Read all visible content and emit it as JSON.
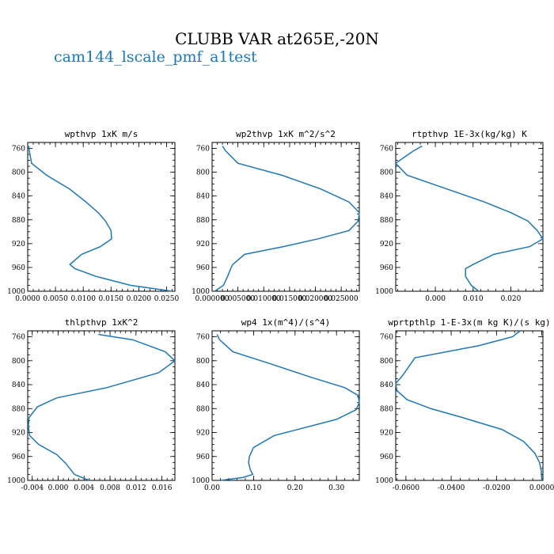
{
  "title": "CLUBB VAR at265E,-20N",
  "legend": {
    "label": "cam144_lscale_pmf_a1test",
    "color": "#1f77b4"
  },
  "chart_data": [
    {
      "type": "line",
      "title": "wpthvp  1xK m/s",
      "xlim": [
        0,
        0.0265
      ],
      "ylim": [
        1000,
        750
      ],
      "xticks": [
        0,
        0.005,
        0.01,
        0.015,
        0.02,
        0.025
      ],
      "xtick_labels": [
        "0.0000",
        "0.0050",
        "0.0100",
        "0.0150",
        "0.0200",
        "0.0250"
      ],
      "yticks": [
        760,
        800,
        840,
        880,
        920,
        960,
        1000
      ],
      "yticks_labels": [
        "760",
        "800",
        "840",
        "880",
        "920",
        "960",
        "1000"
      ],
      "series": [
        {
          "x": [
            0.0002,
            0.0003,
            0.0007,
            0.0034,
            0.0075,
            0.0105,
            0.0127,
            0.014,
            0.015,
            0.0151,
            0.0131,
            0.0097,
            0.0076,
            0.0085,
            0.0123,
            0.0185,
            0.026
          ],
          "y": [
            756,
            765,
            785,
            805,
            828,
            850,
            868,
            882,
            898,
            912,
            925,
            938,
            955,
            962,
            975,
            990,
            1000
          ]
        }
      ]
    },
    {
      "type": "line",
      "title": "wp2thvp  1xK m^2/s^2",
      "xlim": [
        0,
        0.0285
      ],
      "ylim": [
        1000,
        750
      ],
      "xticks": [
        0,
        0.005,
        0.01,
        0.015,
        0.02,
        0.025
      ],
      "xtick_labels": [
        "0.000000",
        "0.005000",
        "0.010000",
        "0.015000",
        "0.020000",
        "0.025000"
      ],
      "yticks": [
        760,
        800,
        840,
        880,
        920,
        960,
        1000
      ],
      "yticks_labels": [
        "760",
        "800",
        "840",
        "880",
        "920",
        "960",
        "1000"
      ],
      "series": [
        {
          "x": [
            0.002,
            0.0026,
            0.005,
            0.0135,
            0.021,
            0.0265,
            0.0285,
            0.0283,
            0.0265,
            0.0205,
            0.0138,
            0.0063,
            0.004,
            0.0036,
            0.003,
            0.0022,
            0.0005
          ],
          "y": [
            756,
            764,
            785,
            805,
            828,
            850,
            868,
            882,
            898,
            912,
            925,
            938,
            955,
            962,
            975,
            990,
            1000
          ]
        }
      ]
    },
    {
      "type": "line",
      "title": "rtpthvp  1E-3x(kg/kg) K",
      "xlim": [
        -0.0105,
        0.0285
      ],
      "ylim": [
        1000,
        750
      ],
      "xticks": [
        0,
        0.01,
        0.02
      ],
      "xtick_labels": [
        "0.000",
        "0.010",
        "0.020"
      ],
      "yticks": [
        760,
        800,
        840,
        880,
        920,
        960,
        1000
      ],
      "yticks_labels": [
        "760",
        "800",
        "840",
        "880",
        "920",
        "960",
        "1000"
      ],
      "series": [
        {
          "x": [
            -0.0035,
            -0.006,
            -0.0105,
            -0.0075,
            0.003,
            0.013,
            0.02,
            0.0245,
            0.027,
            0.0285,
            0.025,
            0.0155,
            0.01,
            0.008,
            0.008,
            0.0095,
            0.0115
          ],
          "y": [
            756,
            765,
            785,
            805,
            828,
            850,
            868,
            882,
            898,
            912,
            925,
            938,
            955,
            962,
            975,
            990,
            1000
          ]
        }
      ]
    },
    {
      "type": "line",
      "title": "thlpthvp  1xK^2",
      "xlim": [
        -0.0047,
        0.018
      ],
      "ylim": [
        1000,
        750
      ],
      "xticks": [
        -0.004,
        0,
        0.004,
        0.008,
        0.012,
        0.016
      ],
      "xtick_labels": [
        "-0.004",
        "0.000",
        "0.004",
        "0.008",
        "0.012",
        "0.016"
      ],
      "yticks": [
        760,
        800,
        840,
        880,
        920,
        960,
        1000
      ],
      "yticks_labels": [
        "760",
        "800",
        "840",
        "880",
        "920",
        "960",
        "1000"
      ],
      "series": [
        {
          "x": [
            0.0062,
            0.0115,
            0.0165,
            0.018,
            0.0155,
            0.0075,
            -0.0002,
            -0.0032,
            -0.0045,
            -0.0046,
            -0.0044,
            -0.003,
            -0.0002,
            0.0012,
            0.0025,
            0.0048
          ],
          "y": [
            756,
            765,
            785,
            800,
            820,
            845,
            862,
            877,
            895,
            910,
            925,
            940,
            957,
            972,
            990,
            1000
          ]
        }
      ]
    },
    {
      "type": "line",
      "title": "wp4  1x(m^4)/(s^4)",
      "xlim": [
        0,
        0.355
      ],
      "ylim": [
        1000,
        750
      ],
      "xticks": [
        0,
        0.1,
        0.2,
        0.3
      ],
      "xtick_labels": [
        "0.00",
        "0.10",
        "0.20",
        "0.30"
      ],
      "yticks": [
        760,
        800,
        840,
        880,
        920,
        960,
        1000
      ],
      "yticks_labels": [
        "760",
        "800",
        "840",
        "880",
        "920",
        "960",
        "1000"
      ],
      "series": [
        {
          "x": [
            0.012,
            0.018,
            0.05,
            0.14,
            0.24,
            0.32,
            0.352,
            0.355,
            0.347,
            0.3,
            0.15,
            0.1,
            0.09,
            0.088,
            0.092,
            0.098,
            0.075,
            0.02
          ],
          "y": [
            756,
            765,
            785,
            805,
            828,
            845,
            858,
            870,
            882,
            898,
            925,
            945,
            960,
            970,
            982,
            990,
            995,
            1000
          ]
        }
      ]
    },
    {
      "type": "line",
      "title": "wprtpthlp  1-E-3x(m kg K)/(s kg)",
      "xlim": [
        -0.0645,
        0.0005
      ],
      "ylim": [
        1000,
        750
      ],
      "xticks": [
        -0.06,
        -0.04,
        -0.02,
        0
      ],
      "xtick_labels": [
        "-0.0600",
        "-0.0400",
        "-0.0200",
        "0.0000"
      ],
      "yticks": [
        760,
        800,
        840,
        880,
        920,
        960,
        1000
      ],
      "yticks_labels": [
        "760",
        "800",
        "840",
        "880",
        "920",
        "960",
        "1000"
      ],
      "series": [
        {
          "x": [
            -0.0095,
            -0.013,
            -0.028,
            -0.056,
            -0.0615,
            -0.0645,
            -0.064,
            -0.0595,
            -0.049,
            -0.035,
            -0.0175,
            -0.008,
            -0.003,
            -0.001,
            -0.0002,
            0.0
          ],
          "y": [
            750,
            760,
            775,
            795,
            825,
            838,
            850,
            865,
            880,
            895,
            915,
            935,
            955,
            970,
            985,
            1000
          ]
        }
      ]
    }
  ]
}
